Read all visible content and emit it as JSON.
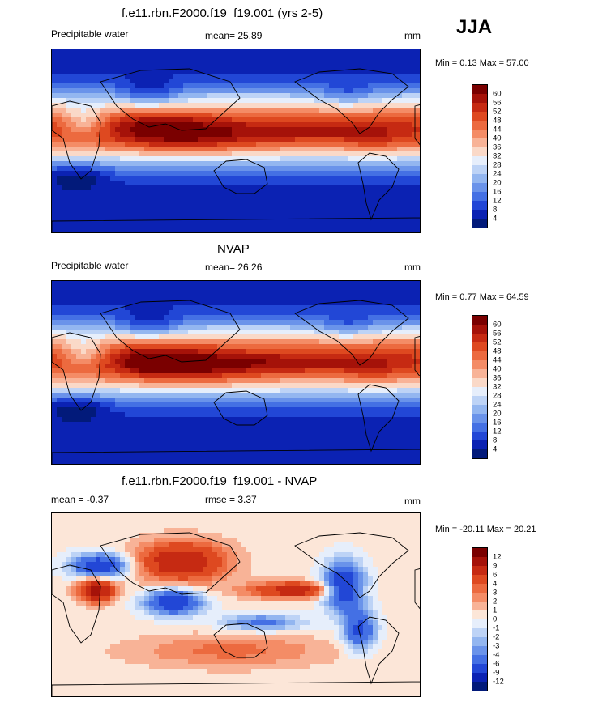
{
  "season": "JJA",
  "panels": [
    {
      "id": "model",
      "title": "f.e11.rbn.F2000.f19_f19.001 (yrs 2-5)",
      "left_label": "Precipitable water",
      "center_label": "mean=  25.89",
      "units": "mm",
      "minmax": "Min =   0.13 Max =  57.00",
      "colorbar": {
        "labels": [
          "60",
          "56",
          "52",
          "48",
          "44",
          "40",
          "36",
          "32",
          "28",
          "24",
          "20",
          "16",
          "12",
          "8",
          "4"
        ],
        "colors": [
          "#7a0000",
          "#a51209",
          "#c62a12",
          "#de4920",
          "#ec6a3f",
          "#f48c66",
          "#f8b397",
          "#fad9c8",
          "#e6eefb",
          "#bdd3f6",
          "#93b6f0",
          "#6a93ea",
          "#4470e4",
          "#2247d6",
          "#0b22b3",
          "#021a7a"
        ]
      }
    },
    {
      "id": "obs",
      "title": "NVAP",
      "left_label": "Precipitable water",
      "center_label": "mean=  26.26",
      "units": "mm",
      "minmax": "Min =   0.77 Max =  64.59",
      "colorbar": {
        "labels": [
          "60",
          "56",
          "52",
          "48",
          "44",
          "40",
          "36",
          "32",
          "28",
          "24",
          "20",
          "16",
          "12",
          "8",
          "4"
        ],
        "colors": [
          "#7a0000",
          "#a51209",
          "#c62a12",
          "#de4920",
          "#ec6a3f",
          "#f48c66",
          "#f8b397",
          "#fad9c8",
          "#e6eefb",
          "#bdd3f6",
          "#93b6f0",
          "#6a93ea",
          "#4470e4",
          "#2247d6",
          "#0b22b3",
          "#021a7a"
        ]
      }
    },
    {
      "id": "diff",
      "title": "f.e11.rbn.F2000.f19_f19.001 - NVAP",
      "left_label": "mean =  -0.37",
      "center_label": "rmse =   3.37",
      "units": "mm",
      "minmax": "Min = -20.11 Max =  20.21",
      "colorbar": {
        "labels": [
          "12",
          "9",
          "6",
          "4",
          "3",
          "2",
          "1",
          "0",
          "-1",
          "-2",
          "-3",
          "-4",
          "-6",
          "-9",
          "-12"
        ],
        "colors": [
          "#7a0000",
          "#a51209",
          "#c62a12",
          "#de4920",
          "#ec6a3f",
          "#f48c66",
          "#f8b397",
          "#fce6d8",
          "#e6eefb",
          "#bdd3f6",
          "#93b6f0",
          "#6a93ea",
          "#4470e4",
          "#2247d6",
          "#0b22b3",
          "#021a7a"
        ]
      }
    }
  ]
}
